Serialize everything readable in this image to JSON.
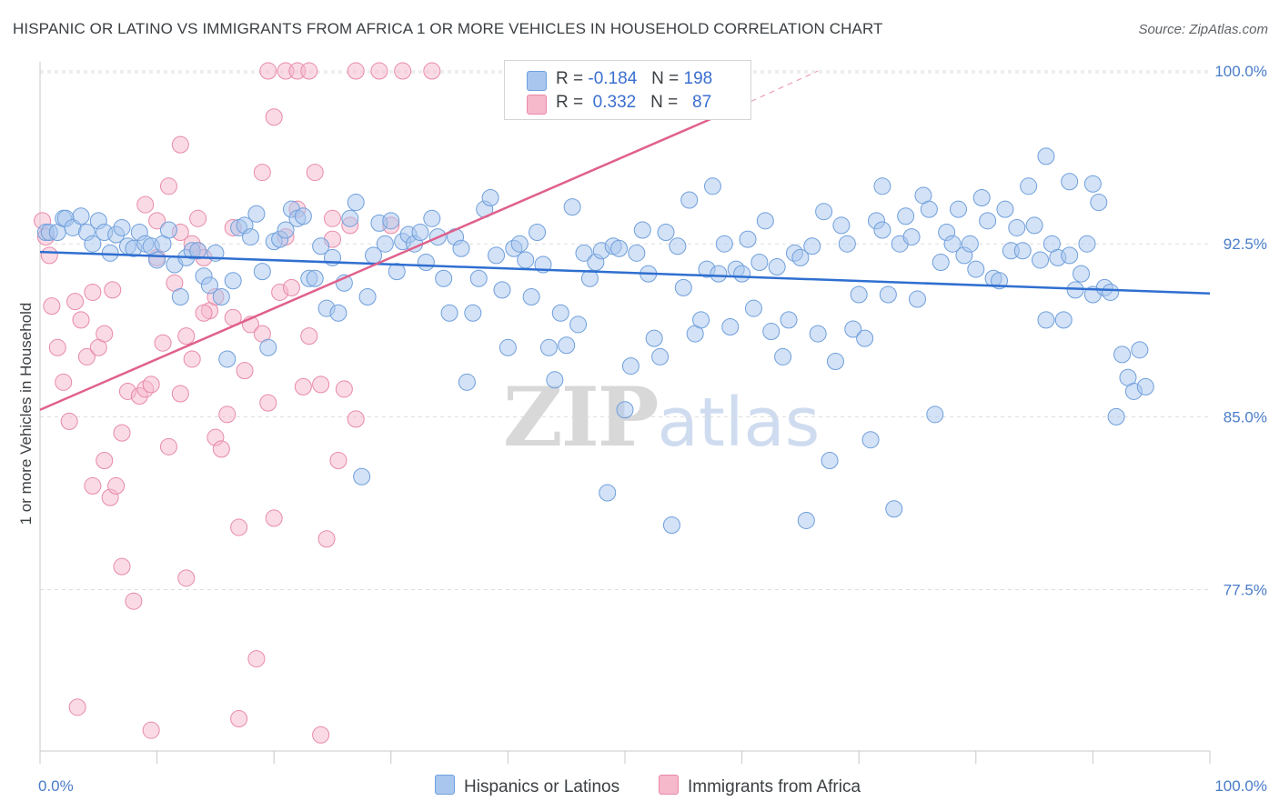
{
  "title": "HISPANIC OR LATINO VS IMMIGRANTS FROM AFRICA 1 OR MORE VEHICLES IN HOUSEHOLD CORRELATION CHART",
  "source": "Source: ZipAtlas.com",
  "watermark": {
    "zip": "ZIP",
    "atlas": "atlas"
  },
  "colors": {
    "blue_fill": "#a8c6ee",
    "blue_stroke": "#6f9fdc",
    "blue_line": "#2f6fd0",
    "pink_fill": "#f6b8cb",
    "pink_stroke": "#e88aa8",
    "pink_line": "#e0608c",
    "tick_text": "#4a7cc9",
    "grid": "#dddddd"
  },
  "legend": {
    "rows": [
      {
        "r_label": "R =",
        "r_value": "-0.184",
        "n_label": "N =",
        "n_value": "198",
        "color": "#a8c6ee"
      },
      {
        "r_label": "R =",
        "r_value": "0.332",
        "n_label": "N =",
        "n_value": "87",
        "color": "#f6b8cb"
      }
    ]
  },
  "bottom_legend": [
    {
      "label": "Hispanics or Latinos",
      "color": "#a8c6ee"
    },
    {
      "label": "Immigrants from Africa",
      "color": "#f6b8cb"
    }
  ],
  "chart_data": {
    "type": "scatter",
    "title": "HISPANIC OR LATINO VS IMMIGRANTS FROM AFRICA 1 OR MORE VEHICLES IN HOUSEHOLD CORRELATION CHART",
    "xlabel": "",
    "ylabel": "1 or more Vehicles in Household",
    "xlim": [
      0,
      100
    ],
    "ylim": [
      70.5,
      101.5
    ],
    "x_tick_labels": [
      "0.0%",
      "100.0%"
    ],
    "y_ticks": [
      77.5,
      85.0,
      92.5,
      100.0
    ],
    "y_tick_labels": [
      "77.5%",
      "85.0%",
      "92.5%",
      "100.0%"
    ],
    "grid": true,
    "legend_placement": "top-center",
    "series": [
      {
        "name": "Hispanics or Latinos",
        "r": -0.184,
        "n": 198,
        "trend": {
          "x": [
            0,
            100
          ],
          "y": [
            92.15,
            90.35
          ]
        },
        "points": [
          [
            0.5,
            93.0
          ],
          [
            0.8,
            93.0
          ],
          [
            1.5,
            93.0
          ],
          [
            2.0,
            93.6
          ],
          [
            2.2,
            93.6
          ],
          [
            2.8,
            93.2
          ],
          [
            3.5,
            93.7
          ],
          [
            4.0,
            93.0
          ],
          [
            4.5,
            92.5
          ],
          [
            5.0,
            93.5
          ],
          [
            5.5,
            93.0
          ],
          [
            6.0,
            92.1
          ],
          [
            6.5,
            92.9
          ],
          [
            7.0,
            93.2
          ],
          [
            7.5,
            92.4
          ],
          [
            8.0,
            92.3
          ],
          [
            8.5,
            93.0
          ],
          [
            9.0,
            92.5
          ],
          [
            9.5,
            92.4
          ],
          [
            10.0,
            91.8
          ],
          [
            10.5,
            92.5
          ],
          [
            11.0,
            93.1
          ],
          [
            11.5,
            91.6
          ],
          [
            12.0,
            90.2
          ],
          [
            12.5,
            91.9
          ],
          [
            13.0,
            92.2
          ],
          [
            13.5,
            92.2
          ],
          [
            14.0,
            91.1
          ],
          [
            14.5,
            90.7
          ],
          [
            15.0,
            92.1
          ],
          [
            15.5,
            90.2
          ],
          [
            16.0,
            87.5
          ],
          [
            16.5,
            90.9
          ],
          [
            17.0,
            93.2
          ],
          [
            17.5,
            93.3
          ],
          [
            18.0,
            92.8
          ],
          [
            18.5,
            93.8
          ],
          [
            19.0,
            91.3
          ],
          [
            19.5,
            88.0
          ],
          [
            20.0,
            92.6
          ],
          [
            20.5,
            92.7
          ],
          [
            21.0,
            93.1
          ],
          [
            21.5,
            94.0
          ],
          [
            22.0,
            93.6
          ],
          [
            22.5,
            93.7
          ],
          [
            23.0,
            91.0
          ],
          [
            23.5,
            91.0
          ],
          [
            24.0,
            92.4
          ],
          [
            24.5,
            89.7
          ],
          [
            25.0,
            91.9
          ],
          [
            25.5,
            89.5
          ],
          [
            26.0,
            90.8
          ],
          [
            26.5,
            93.6
          ],
          [
            27.0,
            94.3
          ],
          [
            27.5,
            82.4
          ],
          [
            28.0,
            90.2
          ],
          [
            28.5,
            92.0
          ],
          [
            29.0,
            93.4
          ],
          [
            29.5,
            92.5
          ],
          [
            30.0,
            93.5
          ],
          [
            30.5,
            91.3
          ],
          [
            31.0,
            92.6
          ],
          [
            31.5,
            92.9
          ],
          [
            32.0,
            92.5
          ],
          [
            32.5,
            93.0
          ],
          [
            33.0,
            91.7
          ],
          [
            33.5,
            93.6
          ],
          [
            34.0,
            92.8
          ],
          [
            34.5,
            91.0
          ],
          [
            35.0,
            89.5
          ],
          [
            35.5,
            92.8
          ],
          [
            36.0,
            92.3
          ],
          [
            36.5,
            86.5
          ],
          [
            37.0,
            89.5
          ],
          [
            37.5,
            91.0
          ],
          [
            38.0,
            94.0
          ],
          [
            38.5,
            94.5
          ],
          [
            39.0,
            92.0
          ],
          [
            39.5,
            90.5
          ],
          [
            40.0,
            88.0
          ],
          [
            40.5,
            92.3
          ],
          [
            41.0,
            92.5
          ],
          [
            41.5,
            91.8
          ],
          [
            42.0,
            90.2
          ],
          [
            42.5,
            93.0
          ],
          [
            43.0,
            91.6
          ],
          [
            43.5,
            88.0
          ],
          [
            44.0,
            86.6
          ],
          [
            44.5,
            89.5
          ],
          [
            45.0,
            88.1
          ],
          [
            45.5,
            94.1
          ],
          [
            46.0,
            89.0
          ],
          [
            46.5,
            92.1
          ],
          [
            47.0,
            91.0
          ],
          [
            47.5,
            91.7
          ],
          [
            48.0,
            92.2
          ],
          [
            48.5,
            81.7
          ],
          [
            49.0,
            92.4
          ],
          [
            49.5,
            92.3
          ],
          [
            50.0,
            85.3
          ],
          [
            50.5,
            87.2
          ],
          [
            51.0,
            92.1
          ],
          [
            51.5,
            93.1
          ],
          [
            52.0,
            91.2
          ],
          [
            52.5,
            88.4
          ],
          [
            53.0,
            87.6
          ],
          [
            53.5,
            93.0
          ],
          [
            54.0,
            80.3
          ],
          [
            54.5,
            92.4
          ],
          [
            55.0,
            90.6
          ],
          [
            55.5,
            94.4
          ],
          [
            56.0,
            88.6
          ],
          [
            56.5,
            89.2
          ],
          [
            57.0,
            91.4
          ],
          [
            57.5,
            95.0
          ],
          [
            58.0,
            91.2
          ],
          [
            58.5,
            92.5
          ],
          [
            59.0,
            88.9
          ],
          [
            59.5,
            91.4
          ],
          [
            60.0,
            91.2
          ],
          [
            60.5,
            92.7
          ],
          [
            61.0,
            89.7
          ],
          [
            61.5,
            91.7
          ],
          [
            62.0,
            93.5
          ],
          [
            62.5,
            88.7
          ],
          [
            63.0,
            91.5
          ],
          [
            63.5,
            87.6
          ],
          [
            64.0,
            89.2
          ],
          [
            64.5,
            92.1
          ],
          [
            65.0,
            91.9
          ],
          [
            65.5,
            80.5
          ],
          [
            66.0,
            92.4
          ],
          [
            66.5,
            88.6
          ],
          [
            67.0,
            93.9
          ],
          [
            67.5,
            83.1
          ],
          [
            68.0,
            87.4
          ],
          [
            68.5,
            93.3
          ],
          [
            69.0,
            92.5
          ],
          [
            69.5,
            88.8
          ],
          [
            70.0,
            90.3
          ],
          [
            70.5,
            88.4
          ],
          [
            71.0,
            84.0
          ],
          [
            71.5,
            93.5
          ],
          [
            72.0,
            93.1
          ],
          [
            72.5,
            90.3
          ],
          [
            73.0,
            81.0
          ],
          [
            73.5,
            92.5
          ],
          [
            74.0,
            93.7
          ],
          [
            74.5,
            92.8
          ],
          [
            75.0,
            90.1
          ],
          [
            75.5,
            94.6
          ],
          [
            76.0,
            94.0
          ],
          [
            76.5,
            85.1
          ],
          [
            77.0,
            91.7
          ],
          [
            77.5,
            93.0
          ],
          [
            78.0,
            92.5
          ],
          [
            78.5,
            94.0
          ],
          [
            79.0,
            92.0
          ],
          [
            79.5,
            92.5
          ],
          [
            80.0,
            91.4
          ],
          [
            80.5,
            94.5
          ],
          [
            81.0,
            93.5
          ],
          [
            81.5,
            91.0
          ],
          [
            82.0,
            90.9
          ],
          [
            82.5,
            94.0
          ],
          [
            83.0,
            92.2
          ],
          [
            83.5,
            93.2
          ],
          [
            84.0,
            92.2
          ],
          [
            84.5,
            95.0
          ],
          [
            85.0,
            93.3
          ],
          [
            85.5,
            91.8
          ],
          [
            86.0,
            89.2
          ],
          [
            86.5,
            92.5
          ],
          [
            87.0,
            91.9
          ],
          [
            87.5,
            89.2
          ],
          [
            88.0,
            92.0
          ],
          [
            88.5,
            90.5
          ],
          [
            89.0,
            91.2
          ],
          [
            89.5,
            92.5
          ],
          [
            90.0,
            90.3
          ],
          [
            90.5,
            94.3
          ],
          [
            91.0,
            90.6
          ],
          [
            91.5,
            90.4
          ],
          [
            92.0,
            85.0
          ],
          [
            92.5,
            87.7
          ],
          [
            93.0,
            86.7
          ],
          [
            93.5,
            86.1
          ],
          [
            94.0,
            87.9
          ],
          [
            94.5,
            86.3
          ],
          [
            86.0,
            96.3
          ],
          [
            88.0,
            95.2
          ],
          [
            90.0,
            95.1
          ],
          [
            72.0,
            95.0
          ]
        ]
      },
      {
        "name": "Immigrants from Africa",
        "r": 0.332,
        "n": 87,
        "trend": {
          "x": [
            0,
            60
          ],
          "y": [
            85.3,
            98.5
          ]
        },
        "trend_dashed": {
          "x": [
            60,
            66.5
          ],
          "y": [
            98.5,
            100.0
          ]
        },
        "points": [
          [
            0.2,
            93.5
          ],
          [
            0.5,
            92.8
          ],
          [
            0.8,
            92.0
          ],
          [
            1.0,
            89.8
          ],
          [
            1.5,
            88.0
          ],
          [
            2.0,
            86.5
          ],
          [
            2.5,
            84.8
          ],
          [
            3.0,
            90.0
          ],
          [
            3.5,
            89.2
          ],
          [
            4.0,
            87.6
          ],
          [
            4.5,
            90.4
          ],
          [
            5.0,
            88.0
          ],
          [
            5.5,
            83.1
          ],
          [
            6.0,
            81.5
          ],
          [
            6.5,
            82.0
          ],
          [
            7.0,
            78.5
          ],
          [
            7.5,
            86.1
          ],
          [
            8.0,
            77.0
          ],
          [
            8.5,
            85.9
          ],
          [
            9.0,
            86.2
          ],
          [
            9.5,
            86.4
          ],
          [
            10.0,
            91.9
          ],
          [
            10.5,
            88.2
          ],
          [
            11.0,
            83.7
          ],
          [
            11.5,
            90.8
          ],
          [
            12.0,
            86.0
          ],
          [
            12.5,
            78.0
          ],
          [
            13.0,
            87.5
          ],
          [
            13.5,
            92.2
          ],
          [
            14.0,
            91.9
          ],
          [
            14.5,
            89.6
          ],
          [
            15.0,
            84.1
          ],
          [
            15.5,
            83.6
          ],
          [
            16.0,
            85.1
          ],
          [
            16.5,
            89.3
          ],
          [
            17.0,
            80.2
          ],
          [
            17.5,
            87.0
          ],
          [
            18.0,
            89.0
          ],
          [
            18.5,
            74.5
          ],
          [
            19.0,
            88.6
          ],
          [
            19.5,
            85.6
          ],
          [
            20.0,
            80.6
          ],
          [
            20.5,
            90.4
          ],
          [
            21.0,
            92.8
          ],
          [
            21.5,
            90.6
          ],
          [
            22.0,
            94.0
          ],
          [
            22.5,
            86.3
          ],
          [
            23.0,
            88.5
          ],
          [
            23.5,
            95.6
          ],
          [
            24.0,
            86.4
          ],
          [
            24.5,
            79.7
          ],
          [
            25.0,
            93.6
          ],
          [
            25.5,
            83.1
          ],
          [
            26.0,
            86.2
          ],
          [
            26.5,
            93.3
          ],
          [
            27.0,
            84.9
          ],
          [
            3.2,
            72.4
          ],
          [
            4.5,
            82.0
          ],
          [
            5.5,
            88.6
          ],
          [
            6.2,
            90.5
          ],
          [
            7.0,
            84.3
          ],
          [
            9.5,
            71.4
          ],
          [
            12.0,
            96.8
          ],
          [
            12.5,
            88.5
          ],
          [
            13.0,
            92.5
          ],
          [
            14.0,
            89.5
          ],
          [
            15.0,
            90.2
          ],
          [
            16.5,
            93.2
          ],
          [
            17.0,
            71.9
          ],
          [
            19.0,
            95.6
          ],
          [
            19.5,
            100.0
          ],
          [
            20.0,
            98.0
          ],
          [
            21.0,
            100.0
          ],
          [
            22.0,
            100.0
          ],
          [
            23.0,
            100.0
          ],
          [
            24.0,
            71.2
          ],
          [
            27.0,
            100.0
          ],
          [
            29.0,
            100.0
          ],
          [
            31.0,
            100.0
          ],
          [
            33.5,
            100.0
          ],
          [
            30.0,
            93.3
          ],
          [
            25.0,
            92.7
          ],
          [
            12.0,
            93.0
          ],
          [
            10.0,
            93.5
          ],
          [
            9.0,
            94.2
          ],
          [
            11.0,
            95.0
          ],
          [
            13.5,
            93.6
          ]
        ]
      }
    ]
  }
}
